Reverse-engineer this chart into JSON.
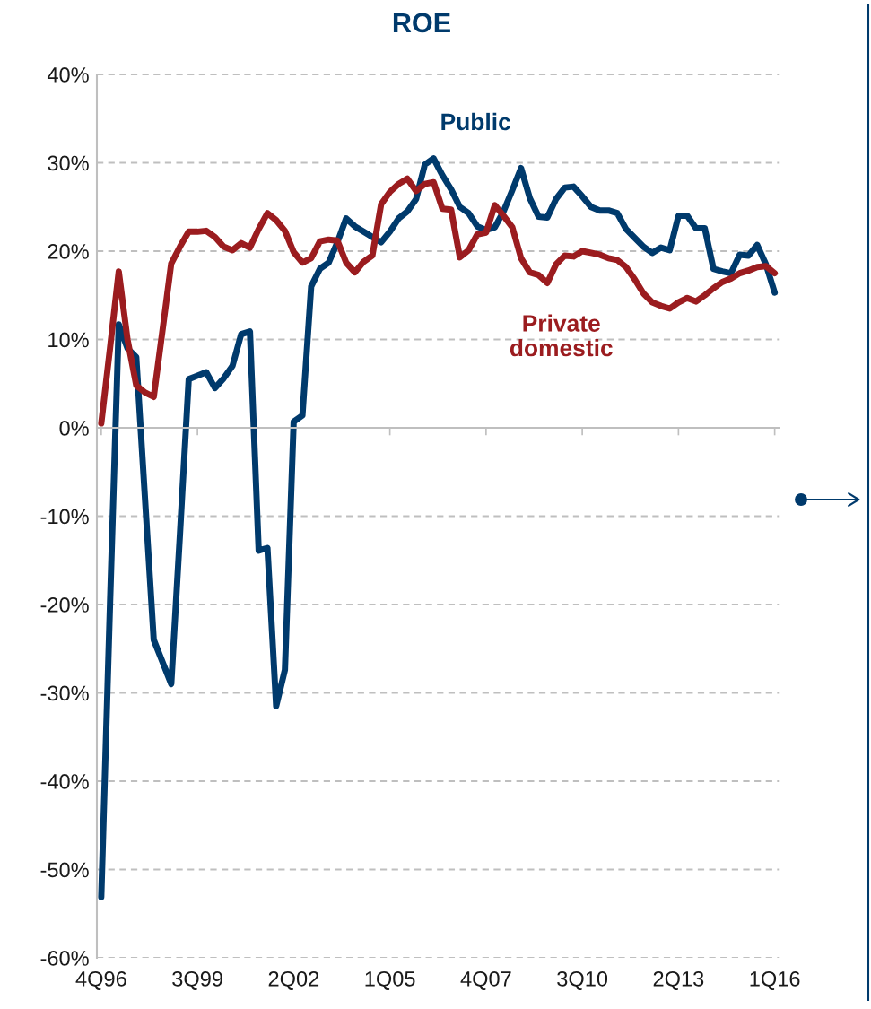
{
  "chart_data": {
    "type": "line",
    "title": "ROE",
    "categories": [
      "4Q96",
      null,
      null,
      null,
      null,
      null,
      null,
      null,
      null,
      null,
      null,
      "3Q99",
      null,
      null,
      null,
      null,
      null,
      null,
      null,
      null,
      null,
      null,
      "2Q02",
      null,
      null,
      null,
      null,
      null,
      null,
      null,
      null,
      null,
      null,
      "1Q05",
      null,
      null,
      null,
      null,
      null,
      null,
      null,
      null,
      null,
      null,
      "4Q07",
      null,
      null,
      null,
      null,
      null,
      null,
      null,
      null,
      null,
      null,
      "3Q10",
      null,
      null,
      null,
      null,
      null,
      null,
      null,
      null,
      null,
      null,
      "2Q13",
      null,
      null,
      null,
      null,
      null,
      null,
      null,
      null,
      null,
      null,
      "1Q16"
    ],
    "series": [
      {
        "name": "Public",
        "color": "#003a6c",
        "values": [
          -53.1,
          -20,
          11.7,
          9,
          8,
          -8,
          -24,
          -26.5,
          -29,
          -12,
          5.5,
          5.9,
          6.3,
          4.5,
          5.6,
          7,
          10.6,
          10.9,
          -13.9,
          -13.6,
          -31.5,
          -27.4,
          0.7,
          1.4,
          16,
          18,
          18.7,
          21,
          23.7,
          22.8,
          22.2,
          21.6,
          21,
          22.2,
          23.7,
          24.5,
          25.9,
          29.8,
          30.5,
          28.6,
          27,
          25,
          24.3,
          22.8,
          22.4,
          22.7,
          24.5,
          26.9,
          29.4,
          26,
          23.9,
          23.8,
          25.9,
          27.2,
          27.3,
          26.2,
          25,
          24.6,
          24.6,
          24.3,
          22.5,
          21.5,
          20.5,
          19.8,
          20.4,
          20.1,
          24,
          24,
          22.6,
          22.6,
          18,
          17.7,
          17.5,
          19.6,
          19.5,
          20.7,
          18.5,
          15.3
        ]
      },
      {
        "name": "Private\ndomestic",
        "color": "#9b1c1f",
        "values": [
          0.5,
          9,
          17.7,
          10,
          4.8,
          4,
          3.5,
          11,
          18.6,
          20.5,
          22.2,
          22.2,
          22.3,
          21.6,
          20.5,
          20.1,
          20.9,
          20.4,
          22.5,
          24.3,
          23.5,
          22.3,
          19.9,
          18.7,
          19.2,
          21.1,
          21.3,
          21.2,
          18.7,
          17.6,
          18.8,
          19.5,
          25.3,
          26.7,
          27.6,
          28.2,
          26.8,
          27.6,
          27.8,
          24.8,
          24.7,
          19.3,
          20.1,
          21.9,
          22.1,
          25.2,
          24,
          22.7,
          19.2,
          17.6,
          17.3,
          16.4,
          18.5,
          19.5,
          19.4,
          20,
          19.8,
          19.6,
          19.2,
          19,
          18.2,
          16.8,
          15.2,
          14.2,
          13.8,
          13.5,
          14.2,
          14.7,
          14.3,
          15,
          15.8,
          16.5,
          16.9,
          17.5,
          17.8,
          18.2,
          18.3,
          17.5
        ]
      }
    ],
    "ylim": [
      -60,
      40
    ],
    "yticks": [
      {
        "value": -60,
        "label": "-60%"
      },
      {
        "value": -50,
        "label": "-50%"
      },
      {
        "value": -40,
        "label": "-40%"
      },
      {
        "value": -30,
        "label": "-30%"
      },
      {
        "value": -20,
        "label": "-20%"
      },
      {
        "value": -10,
        "label": "-10%"
      },
      {
        "value": 0,
        "label": "0%"
      },
      {
        "value": 10,
        "label": "10%"
      },
      {
        "value": 20,
        "label": "20%"
      },
      {
        "value": 30,
        "label": "30%"
      },
      {
        "value": 40,
        "label": "40%"
      }
    ],
    "grid": "y",
    "legend": false,
    "marker": "none",
    "line_style": "solid"
  }
}
